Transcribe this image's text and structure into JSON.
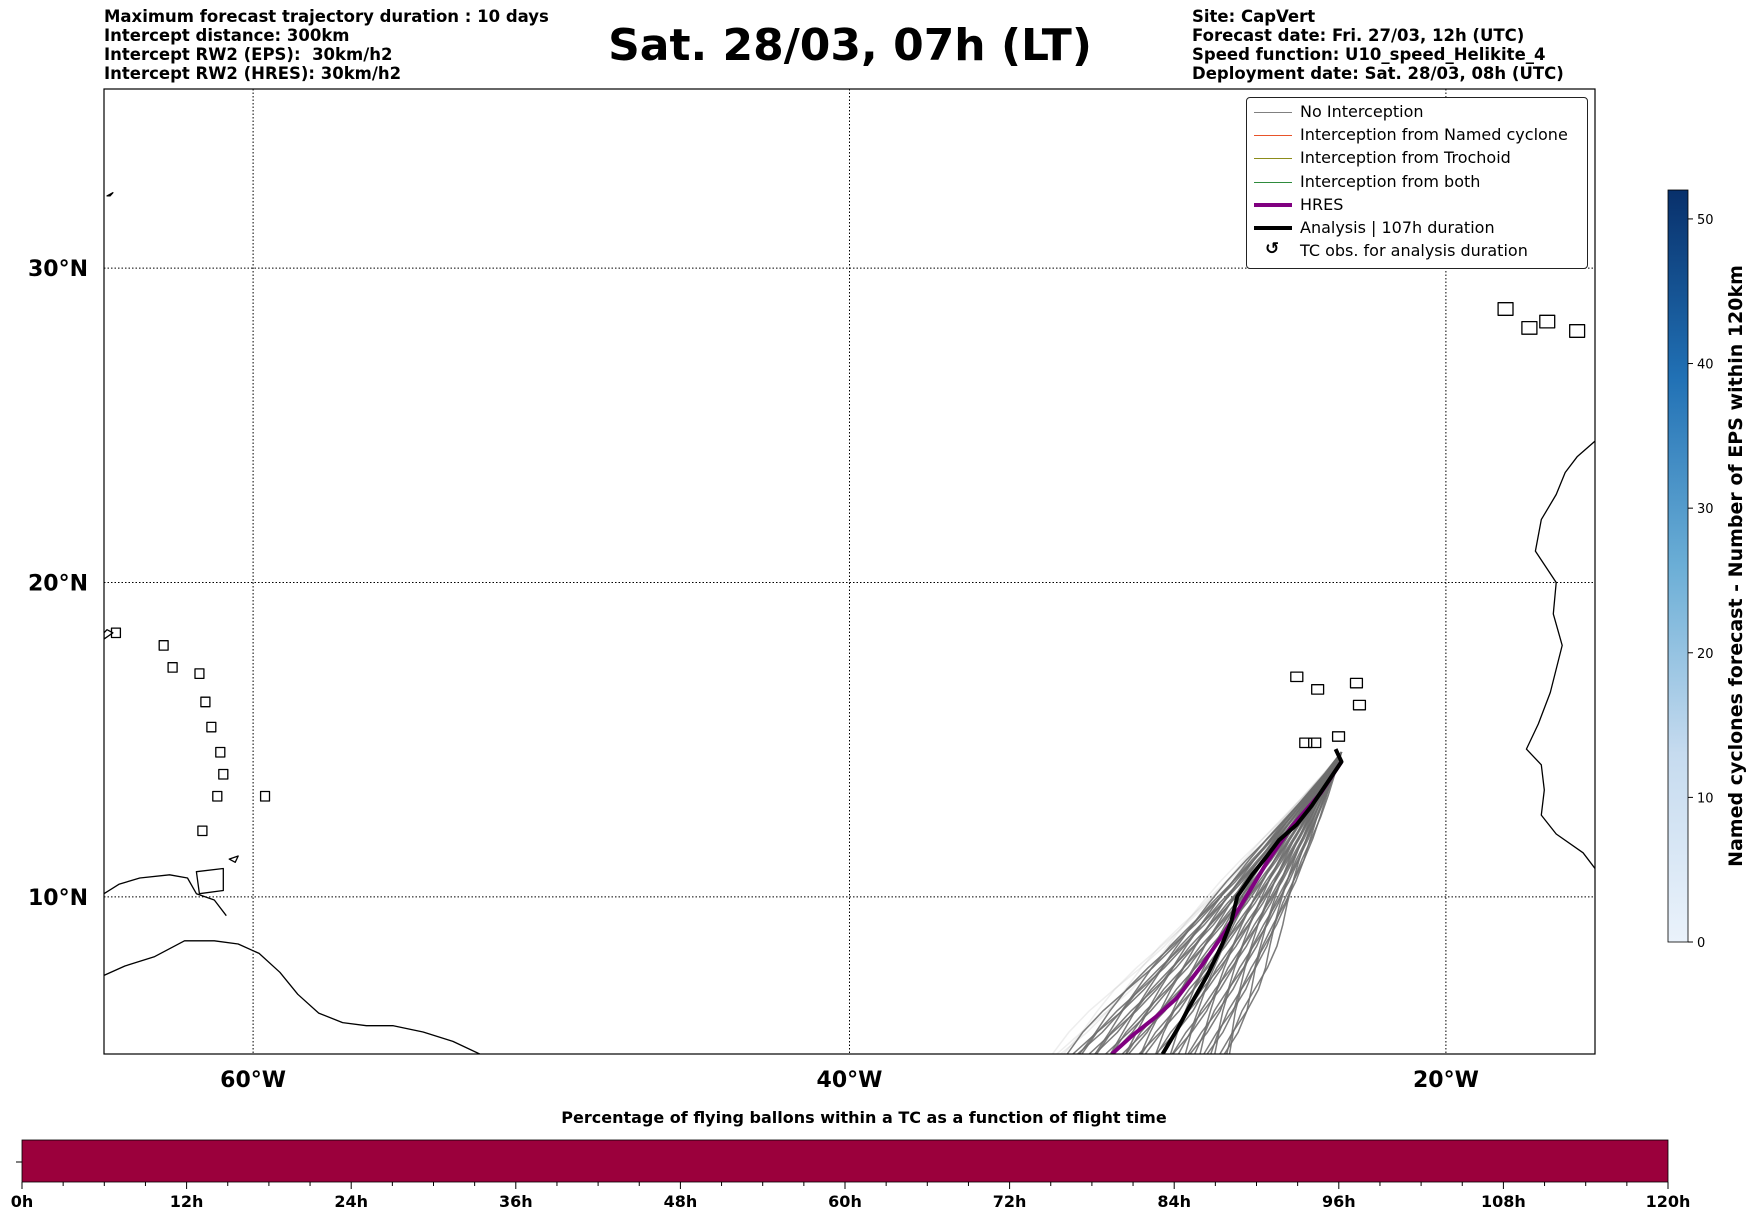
{
  "header_left": {
    "line1": "Maximum forecast trajectory duration : 10 days",
    "line2": "Intercept distance: 300km",
    "line3": "Intercept RW2 (EPS):  30km/h2",
    "line4": "Intercept RW2 (HRES): 30km/h2"
  },
  "header_right": {
    "line1": "Site: CapVert",
    "line2": "Forecast date: Fri. 27/03, 12h (UTC)",
    "line3": "Speed function: U10_speed_Helikite_4",
    "line4": "Deployment date: Sat. 28/03, 08h (UTC)"
  },
  "title": "Sat. 28/03, 07h (LT)",
  "map": {
    "lon_ticks": [
      "60°W",
      "40°W",
      "20°W"
    ],
    "lat_ticks": [
      "30°N",
      "20°N",
      "10°N"
    ],
    "extent": {
      "lon_min": -65,
      "lon_max": -15,
      "lat_min": 5,
      "lat_max": 35.7
    }
  },
  "legend": {
    "items": [
      {
        "label": "No Interception",
        "color": "#808080",
        "style": "thin"
      },
      {
        "label": "Interception from Named cyclone",
        "color": "#e8532a",
        "style": "thin"
      },
      {
        "label": "Interception from Trochoid",
        "color": "#8c8c1a",
        "style": "thin"
      },
      {
        "label": "Interception from both",
        "color": "#2e8b3c",
        "style": "thin"
      },
      {
        "label": "HRES",
        "color": "#800080",
        "style": "thick"
      },
      {
        "label": "Analysis | 107h duration",
        "color": "#000000",
        "style": "thick"
      },
      {
        "label": "TC obs. for analysis duration",
        "color": "#000000",
        "style": "symbol",
        "symbol": "↺"
      }
    ]
  },
  "colorbar": {
    "label": "Named cyclones forecast - Number of EPS within 120km",
    "ticks": [
      0,
      10,
      20,
      30,
      40,
      50
    ],
    "min": 0,
    "max": 52,
    "color_low": "#e6effa",
    "color_high": "#08306b"
  },
  "bottom_bar": {
    "title": "Percentage of flying ballons within a TC as a function of flight time",
    "color": "#9b003c",
    "ticks": [
      "0h",
      "12h",
      "24h",
      "36h",
      "48h",
      "60h",
      "72h",
      "84h",
      "96h",
      "108h",
      "120h"
    ]
  },
  "chart_data": {
    "type": "line",
    "title": "Sat. 28/03, 07h (LT)",
    "xlabel": "",
    "ylabel": "",
    "xlim": [
      -65,
      -15
    ],
    "ylim": [
      5,
      35.7
    ],
    "series": [
      {
        "name": "HRES",
        "color": "#800080",
        "x": [
          -23.5,
          -24.2,
          -25.2,
          -26.0,
          -26.7,
          -27.4,
          -28.2,
          -29.0,
          -29.7,
          -30.5,
          -31.2
        ],
        "y": [
          14.3,
          13.3,
          12.2,
          11.1,
          10.0,
          8.9,
          7.8,
          6.8,
          6.2,
          5.6,
          5.0
        ]
      },
      {
        "name": "Analysis | 107h duration",
        "color": "#000000",
        "x": [
          -23.7,
          -23.5,
          -24.0,
          -24.5,
          -25.0,
          -25.6,
          -26.0,
          -26.5,
          -27.0,
          -27.2,
          -27.5,
          -28.0,
          -28.6,
          -29.0,
          -29.5
        ],
        "y": [
          14.7,
          14.3,
          13.6,
          12.9,
          12.3,
          11.8,
          11.3,
          10.7,
          10.0,
          9.2,
          8.5,
          7.5,
          6.5,
          5.8,
          5.0
        ]
      }
    ]
  }
}
